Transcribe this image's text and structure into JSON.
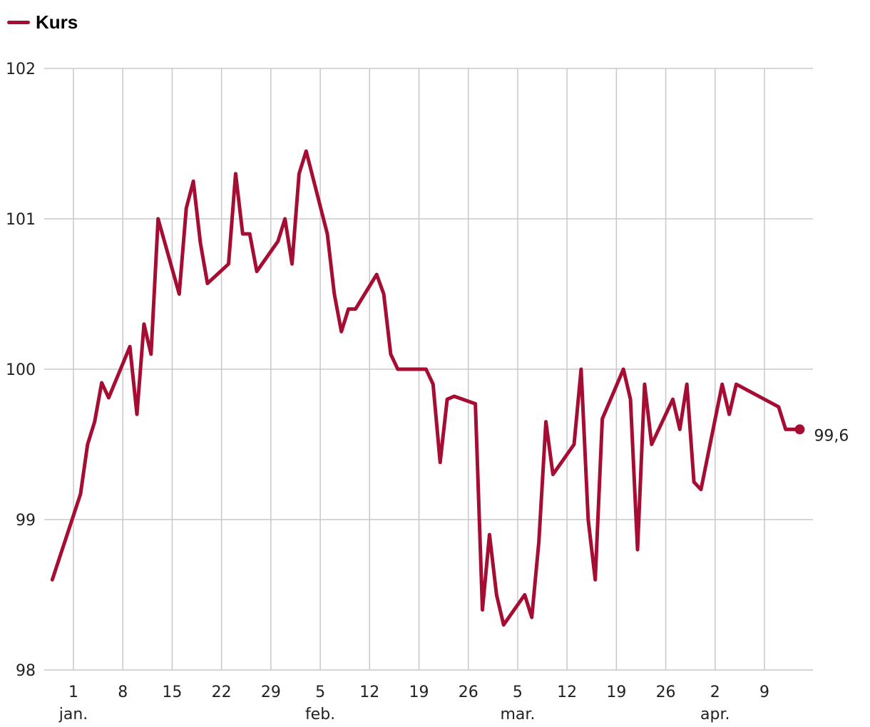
{
  "colors": {
    "series": "#a50d32",
    "grid": "#c8c8c8",
    "text": "#222222"
  },
  "legend": {
    "label": "Kurs"
  },
  "chart_data": {
    "type": "line",
    "title": "",
    "xlabel": "",
    "ylabel": "",
    "ylim": [
      98,
      102
    ],
    "yticks": [
      "98",
      "99",
      "100",
      "101",
      "102"
    ],
    "grid": true,
    "legend_position": "top-left",
    "x_ticks": [
      {
        "date": "01-01",
        "label": "1",
        "month": "jan."
      },
      {
        "date": "01-08",
        "label": "8"
      },
      {
        "date": "01-15",
        "label": "15"
      },
      {
        "date": "01-22",
        "label": "22"
      },
      {
        "date": "01-29",
        "label": "29"
      },
      {
        "date": "02-05",
        "label": "5",
        "month": "feb."
      },
      {
        "date": "02-12",
        "label": "12"
      },
      {
        "date": "02-19",
        "label": "19"
      },
      {
        "date": "02-26",
        "label": "26"
      },
      {
        "date": "03-05",
        "label": "5",
        "month": "mar."
      },
      {
        "date": "03-12",
        "label": "12"
      },
      {
        "date": "03-19",
        "label": "19"
      },
      {
        "date": "03-26",
        "label": "26"
      },
      {
        "date": "04-02",
        "label": "2",
        "month": "apr."
      },
      {
        "date": "04-09",
        "label": "9"
      }
    ],
    "series": [
      {
        "name": "Kurs",
        "points": [
          [
            "12-29",
            98.6
          ],
          [
            "01-02",
            99.17
          ],
          [
            "01-03",
            99.5
          ],
          [
            "01-04",
            99.65
          ],
          [
            "01-05",
            99.91
          ],
          [
            "01-06",
            99.81
          ],
          [
            "01-09",
            100.15
          ],
          [
            "01-10",
            99.7
          ],
          [
            "01-11",
            100.3
          ],
          [
            "01-12",
            100.1
          ],
          [
            "01-13",
            101.0
          ],
          [
            "01-16",
            100.5
          ],
          [
            "01-17",
            101.07
          ],
          [
            "01-18",
            101.25
          ],
          [
            "01-19",
            100.84
          ],
          [
            "01-20",
            100.57
          ],
          [
            "01-23",
            100.7
          ],
          [
            "01-24",
            101.3
          ],
          [
            "01-25",
            100.9
          ],
          [
            "01-26",
            100.9
          ],
          [
            "01-27",
            100.65
          ],
          [
            "01-30",
            100.85
          ],
          [
            "01-31",
            101.0
          ],
          [
            "02-01",
            100.7
          ],
          [
            "02-02",
            101.3
          ],
          [
            "02-03",
            101.45
          ],
          [
            "02-06",
            100.9
          ],
          [
            "02-07",
            100.5
          ],
          [
            "02-08",
            100.25
          ],
          [
            "02-09",
            100.4
          ],
          [
            "02-10",
            100.4
          ],
          [
            "02-13",
            100.63
          ],
          [
            "02-14",
            100.5
          ],
          [
            "02-15",
            100.1
          ],
          [
            "02-16",
            100.0
          ],
          [
            "02-17",
            100.0
          ],
          [
            "02-20",
            100.0
          ],
          [
            "02-21",
            99.9
          ],
          [
            "02-22",
            99.38
          ],
          [
            "02-23",
            99.8
          ],
          [
            "02-24",
            99.82
          ],
          [
            "02-27",
            99.77
          ],
          [
            "02-28",
            98.4
          ],
          [
            "03-01",
            98.9
          ],
          [
            "03-02",
            98.5
          ],
          [
            "03-03",
            98.3
          ],
          [
            "03-06",
            98.5
          ],
          [
            "03-07",
            98.35
          ],
          [
            "03-08",
            98.85
          ],
          [
            "03-09",
            99.65
          ],
          [
            "03-10",
            99.3
          ],
          [
            "03-13",
            99.5
          ],
          [
            "03-14",
            100.0
          ],
          [
            "03-15",
            99.0
          ],
          [
            "03-16",
            98.6
          ],
          [
            "03-17",
            99.67
          ],
          [
            "03-20",
            100.0
          ],
          [
            "03-21",
            99.8
          ],
          [
            "03-22",
            98.8
          ],
          [
            "03-23",
            99.9
          ],
          [
            "03-24",
            99.5
          ],
          [
            "03-27",
            99.8
          ],
          [
            "03-28",
            99.6
          ],
          [
            "03-29",
            99.9
          ],
          [
            "03-30",
            99.25
          ],
          [
            "03-31",
            99.2
          ],
          [
            "04-03",
            99.9
          ],
          [
            "04-04",
            99.7
          ],
          [
            "04-05",
            99.9
          ],
          [
            "04-11",
            99.75
          ],
          [
            "04-12",
            99.6
          ],
          [
            "04-13",
            99.6
          ],
          [
            "04-14",
            99.6
          ]
        ],
        "last_value_label": "99,6"
      }
    ]
  }
}
